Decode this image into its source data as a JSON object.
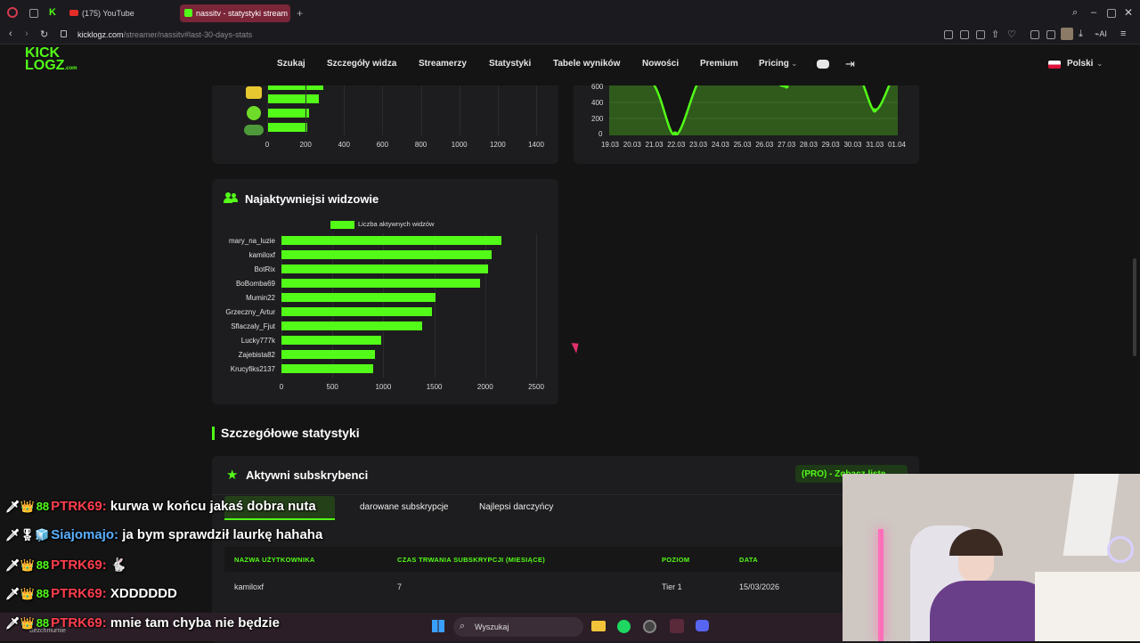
{
  "browser": {
    "tabs": [
      {
        "label": "(175) YouTube"
      },
      {
        "label": "nassitv - statystyki stream"
      }
    ],
    "url_host": "kicklogz.com",
    "url_path": "/streamer/nassitv#last-30-days-stats"
  },
  "site": {
    "logo_line1": "KICK",
    "logo_line2": "LOGZ",
    "logo_suffix": ".com",
    "nav": [
      "Szukaj",
      "Szczegóły widza",
      "Streamerzy",
      "Statystyki",
      "Tabele wyników",
      "Nowości",
      "Premium",
      "Pricing"
    ],
    "language": "Polski"
  },
  "top_left_chart": {
    "x_ticks": [
      "0",
      "200",
      "400",
      "600",
      "800",
      "1000",
      "1200",
      "1400"
    ]
  },
  "top_right_chart": {
    "y_ticks": [
      "600",
      "400",
      "200",
      "0"
    ],
    "x_ticks": [
      "19.03",
      "20.03",
      "21.03",
      "22.03",
      "23.03",
      "24.03",
      "25.03",
      "26.03",
      "27.03",
      "28.03",
      "29.03",
      "30.03",
      "31.03",
      "01.04"
    ]
  },
  "active_viewers": {
    "title": "Najaktywniejsi widzowie"
  },
  "chart_data": {
    "type": "bar",
    "legend": "Liczba aktywnych widzów",
    "categories": [
      "mary_na_luzie",
      "kamiloxf",
      "BotRix",
      "BoBomba69",
      "Mumin22",
      "Grzeczny_Artur",
      "Sflaczaly_Fjut",
      "Lucky777k",
      "Zajebista82",
      "Krucyfiks2137"
    ],
    "values": [
      2160,
      2060,
      2030,
      1950,
      1510,
      1480,
      1380,
      980,
      920,
      900
    ],
    "x_ticks": [
      "0",
      "500",
      "1000",
      "1500",
      "2000",
      "2500"
    ],
    "xlim": [
      0,
      2500
    ],
    "orientation": "horizontal",
    "grid": true,
    "legend_position": "top"
  },
  "details": {
    "section_title": "Szczegółowe statystyki",
    "card_title": "Aktywni subskrybenci",
    "pro_link": "(PRO) - Zobacz listę",
    "tabs": [
      "darowane subskrypcje",
      "Najlepsi darczyńcy"
    ],
    "columns": [
      "NAZWA UŻYTKOWNIKA",
      "CZAS TRWANIA SUBSKRYPCJI (MIESIĄCE)",
      "POZIOM",
      "DATA"
    ],
    "rows": [
      {
        "user": "kamiloxf",
        "months": "7",
        "tier": "Tier 1",
        "date": "15/03/2026"
      }
    ]
  },
  "chat": [
    {
      "name": "PTRK69:",
      "msg": "kurwa w końcu jakaś dobra nuta"
    },
    {
      "name": "Siajomajo:",
      "msg": "ja bym sprawdził laurkę hahaha"
    },
    {
      "name": "PTRK69:",
      "msg": "🐇"
    },
    {
      "name": "PTRK69:",
      "msg": "XDDDDDD"
    },
    {
      "name": "PTRK69:",
      "msg": "mnie tam chyba nie będzie"
    }
  ],
  "taskbar": {
    "search_placeholder": "Wyszukaj",
    "weather": "Bezchmurnie"
  },
  "colors": {
    "accent": "#53fc18",
    "active_tab": "#7a2538",
    "chat_name_red": "#ff3e4e",
    "chat_name_blue": "#5ab0ff"
  }
}
